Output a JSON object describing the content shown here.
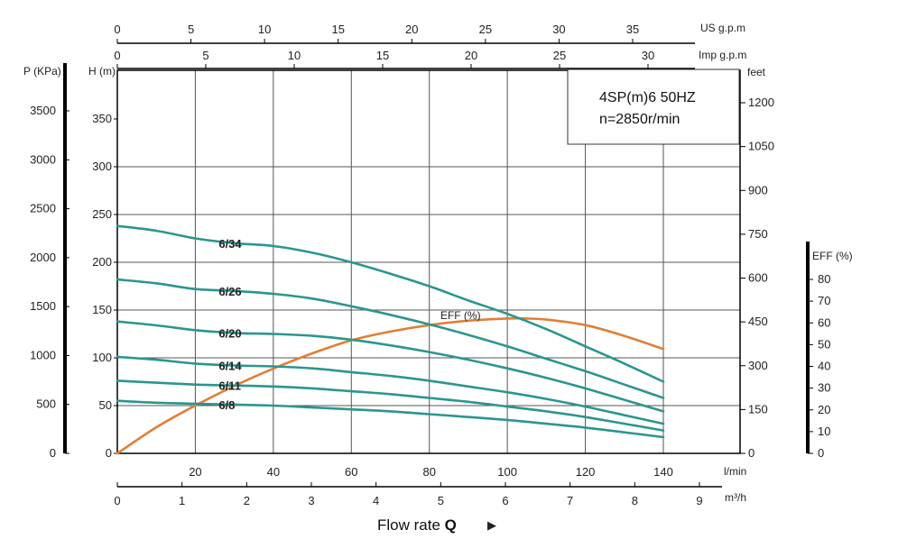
{
  "chart_data": {
    "type": "line",
    "title_lines": [
      "4SP(m)6  50HZ",
      "n=2850r/min"
    ],
    "x_axis_title": "Flow rate",
    "x_axis_title_bold": "Q",
    "x_axis_arrow": "▶",
    "x_axes": {
      "lpm": {
        "unit": "l/min",
        "range": [
          0,
          140
        ],
        "ticks": [
          20,
          40,
          60,
          80,
          100,
          120,
          140
        ]
      },
      "m3h": {
        "unit": "m³/h",
        "range": [
          0,
          9
        ],
        "ticks": [
          0,
          1,
          2,
          3,
          4,
          5,
          6,
          7,
          8,
          9
        ]
      },
      "usgpm": {
        "unit": "US g.p.m",
        "range": [
          0,
          35
        ],
        "ticks": [
          0,
          5,
          10,
          15,
          20,
          25,
          30,
          35
        ]
      },
      "impgpm": {
        "unit": "Imp g.p.m",
        "range": [
          0,
          30
        ],
        "ticks": [
          0,
          5,
          10,
          15,
          20,
          25,
          30
        ]
      }
    },
    "y_axes": {
      "head_m": {
        "unit": "H (m)",
        "range": [
          0,
          350
        ],
        "ticks": [
          0,
          50,
          100,
          150,
          200,
          250,
          300,
          350
        ]
      },
      "pressure_kpa": {
        "unit": "P (KPa)",
        "range": [
          0,
          3500
        ],
        "ticks": [
          0,
          500,
          1000,
          1500,
          2000,
          2500,
          3000,
          3500
        ]
      },
      "feet": {
        "unit": "feet",
        "ticks": [
          0,
          150,
          300,
          450,
          600,
          750,
          900,
          1050,
          1200
        ]
      },
      "eff_pct": {
        "unit": "EFF (%)",
        "range": [
          0,
          80
        ],
        "ticks": [
          0,
          10,
          20,
          30,
          40,
          50,
          60,
          70,
          80
        ]
      }
    },
    "grid": true,
    "series": [
      {
        "name": "6/34",
        "x": [
          0,
          10,
          20,
          30,
          40,
          50,
          60,
          70,
          80,
          90,
          100,
          110,
          120,
          130,
          140
        ],
        "y": [
          238,
          233,
          225,
          220,
          217,
          210,
          200,
          188,
          175,
          160,
          146,
          130,
          112,
          94,
          75
        ]
      },
      {
        "name": "6/26",
        "x": [
          0,
          10,
          20,
          30,
          40,
          50,
          60,
          70,
          80,
          90,
          100,
          110,
          120,
          130,
          140
        ],
        "y": [
          182,
          178,
          172,
          170,
          167,
          162,
          154,
          145,
          135,
          124,
          112,
          99,
          86,
          72,
          58
        ]
      },
      {
        "name": "6/20",
        "x": [
          0,
          10,
          20,
          30,
          40,
          50,
          60,
          70,
          80,
          90,
          100,
          110,
          120,
          130,
          140
        ],
        "y": [
          138,
          134,
          129,
          126,
          125,
          123,
          119,
          113,
          106,
          98,
          89,
          79,
          68,
          56,
          44
        ]
      },
      {
        "name": "6/14",
        "x": [
          0,
          10,
          20,
          30,
          40,
          50,
          60,
          70,
          80,
          90,
          100,
          110,
          120,
          130,
          140
        ],
        "y": [
          101,
          98,
          94,
          92,
          91,
          89,
          85,
          81,
          76,
          70,
          64,
          57,
          49,
          40,
          31
        ]
      },
      {
        "name": "6/11",
        "x": [
          0,
          10,
          20,
          30,
          40,
          50,
          60,
          70,
          80,
          90,
          100,
          110,
          120,
          130,
          140
        ],
        "y": [
          76,
          74,
          72,
          71,
          70,
          68,
          65,
          62,
          58,
          54,
          49,
          44,
          38,
          31,
          24
        ]
      },
      {
        "name": "6/8",
        "x": [
          0,
          10,
          20,
          30,
          40,
          50,
          60,
          70,
          80,
          90,
          100,
          110,
          120,
          130,
          140
        ],
        "y": [
          55,
          53,
          52,
          51,
          50,
          48,
          46,
          44,
          41,
          38,
          35,
          31,
          27,
          22,
          17
        ]
      }
    ],
    "efficiency": {
      "name": "EFF (%)",
      "x": [
        0,
        10,
        20,
        30,
        40,
        50,
        60,
        70,
        80,
        90,
        100,
        105,
        110,
        120,
        130,
        140
      ],
      "y": [
        0,
        12,
        22,
        31,
        39,
        46,
        52,
        56,
        59,
        61,
        62,
        62,
        61.5,
        59,
        54,
        48
      ]
    }
  }
}
